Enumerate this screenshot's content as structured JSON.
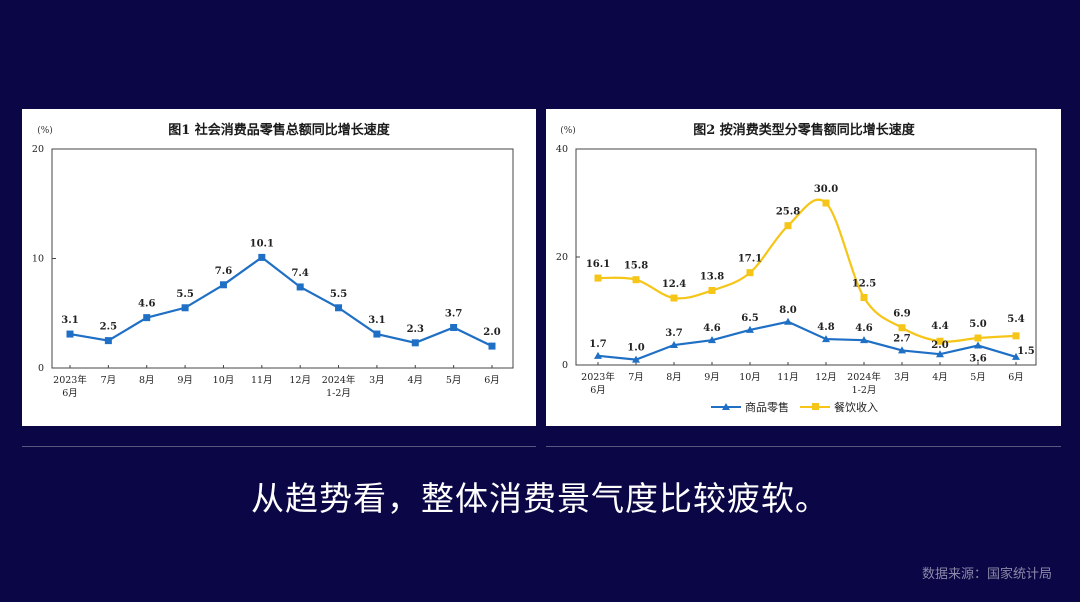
{
  "chart_data": [
    {
      "type": "line",
      "title": "图1  社会消费品零售总额同比增长速度",
      "unit": "(%)",
      "categories": [
        [
          "2023年",
          "6月"
        ],
        [
          "7月"
        ],
        [
          "8月"
        ],
        [
          "9月"
        ],
        [
          "10月"
        ],
        [
          "11月"
        ],
        [
          "12月"
        ],
        [
          "2024年",
          "1-2月"
        ],
        [
          "3月"
        ],
        [
          "4月"
        ],
        [
          "5月"
        ],
        [
          "6月"
        ]
      ],
      "series": [
        {
          "name": "社会消费品零售总额",
          "color": "#1f6fc5",
          "values": [
            3.1,
            2.5,
            4.6,
            5.5,
            7.6,
            10.1,
            7.4,
            5.5,
            3.1,
            2.3,
            3.7,
            2.0
          ]
        }
      ],
      "labels": [
        "3.1",
        "2.5",
        "4.6",
        "5.5",
        "7.6",
        "10.1",
        "7.4",
        "5.5",
        "3.1",
        "2.3",
        "3.7",
        "2.0"
      ],
      "yticks": [
        "0",
        "10",
        "20"
      ],
      "ylim": [
        0,
        20
      ]
    },
    {
      "type": "line",
      "title": "图2  按消费类型分零售额同比增长速度",
      "unit": "(%)",
      "categories": [
        [
          "2023年",
          "6月"
        ],
        [
          "7月"
        ],
        [
          "8月"
        ],
        [
          "9月"
        ],
        [
          "10月"
        ],
        [
          "11月"
        ],
        [
          "12月"
        ],
        [
          "2024年",
          "1-2月"
        ],
        [
          "3月"
        ],
        [
          "4月"
        ],
        [
          "5月"
        ],
        [
          "6月"
        ]
      ],
      "series": [
        {
          "name": "商品零售",
          "color": "#1f6fc5",
          "marker": "triangle",
          "values": [
            1.7,
            1.0,
            3.7,
            4.6,
            6.5,
            8.0,
            4.8,
            4.6,
            2.7,
            2.0,
            3.6,
            1.5
          ],
          "labels": [
            "1.7",
            "1.0",
            "3.7",
            "4.6",
            "6.5",
            "8.0",
            "4.8",
            "4.6",
            "2.7",
            "2.0",
            "3.6",
            "1.5"
          ]
        },
        {
          "name": "餐饮收入",
          "color": "#f5c518",
          "marker": "square",
          "values": [
            16.1,
            15.8,
            12.4,
            13.8,
            17.1,
            25.8,
            30.0,
            12.5,
            6.9,
            4.4,
            5.0,
            5.4
          ],
          "labels": [
            "16.1",
            "15.8",
            "12.4",
            "13.8",
            "17.1",
            "25.8",
            "30.0",
            "12.5",
            "6.9",
            "4.4",
            "5.0",
            "5.4"
          ]
        }
      ],
      "yticks": [
        "0",
        "20",
        "40"
      ],
      "ylim": [
        0,
        40
      ]
    }
  ],
  "caption": "从趋势看，整体消费景气度比较疲软。",
  "source": "数据来源：国家统计局"
}
